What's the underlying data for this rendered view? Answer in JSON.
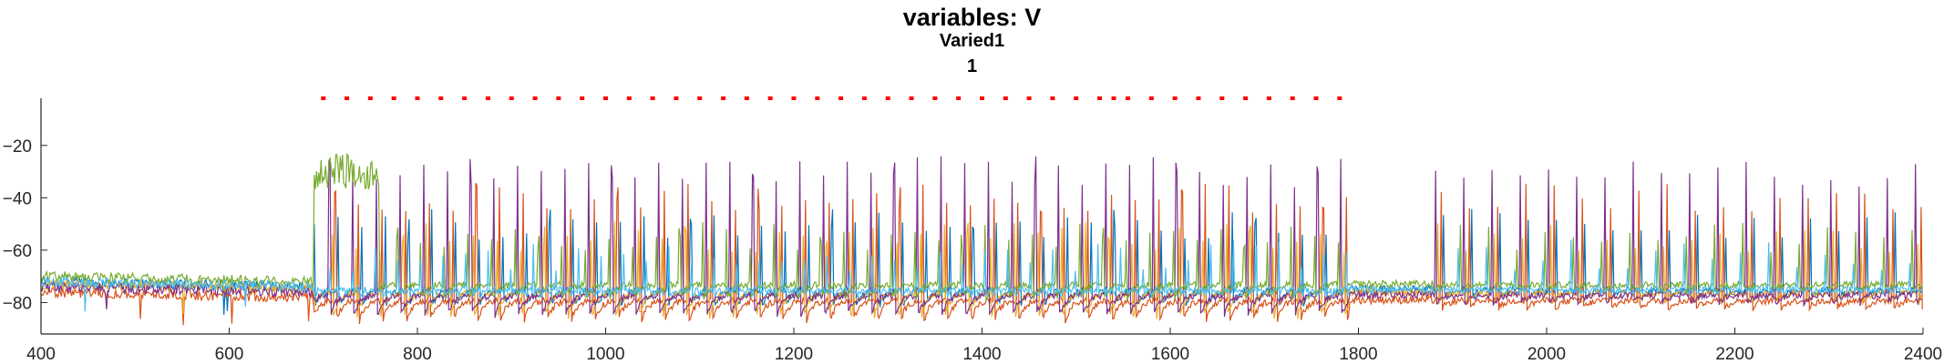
{
  "chart_data": {
    "type": "line",
    "title": "variables: V",
    "subtitle": "Varied1",
    "subtitle2": "1",
    "xlabel": "",
    "ylabel": "",
    "xlim": [
      400,
      2400
    ],
    "ylim": [
      -92,
      -2
    ],
    "xticks": [
      400,
      600,
      800,
      1000,
      1200,
      1400,
      1600,
      1800,
      2000,
      2200,
      2400
    ],
    "yticks": [
      -80,
      -60,
      -40,
      -20
    ],
    "grid": false,
    "legend": "none",
    "spike_markers": {
      "color": "#ff0000",
      "y": -2,
      "x": [
        700,
        725,
        750,
        775,
        800,
        825,
        850,
        875,
        900,
        925,
        950,
        975,
        1000,
        1025,
        1050,
        1075,
        1100,
        1125,
        1150,
        1175,
        1200,
        1225,
        1250,
        1275,
        1300,
        1325,
        1350,
        1375,
        1400,
        1425,
        1450,
        1475,
        1500,
        1525,
        1540,
        1555,
        1580,
        1605,
        1630,
        1655,
        1680,
        1705,
        1730,
        1755,
        1780
      ]
    },
    "series": [
      {
        "color": "#0072bd",
        "baseline": -75,
        "trough": -83,
        "spike_peak": -50,
        "spike_every": 25,
        "active": [
          690,
          1790
        ],
        "late_active": [
          1880,
          2400
        ]
      },
      {
        "color": "#d95319",
        "baseline": -79,
        "trough": -90,
        "spike_peak": -40,
        "spike_every": 25,
        "active": [
          690,
          1790
        ],
        "late_active": [
          1880,
          2400
        ]
      },
      {
        "color": "#edb120",
        "baseline": -76,
        "trough": -89,
        "spike_peak": -55,
        "spike_every": 25,
        "active": [
          690,
          1790
        ],
        "late_active": [
          1880,
          2400
        ]
      },
      {
        "color": "#7e2f8e",
        "baseline": -77,
        "trough": -88,
        "spike_peak": -30,
        "spike_every": 25,
        "active": [
          690,
          1790
        ],
        "late_active": [
          1880,
          2400
        ]
      },
      {
        "color": "#77ac30",
        "baseline": -73,
        "trough": -80,
        "spike_peak": -55,
        "spike_every": 25,
        "active": [
          690,
          1790
        ],
        "late_active": [
          1880,
          2400
        ]
      },
      {
        "color": "#4dbeee",
        "baseline": -75,
        "trough": -78,
        "spike_peak": -62,
        "spike_every": 8,
        "active": [
          690,
          1790
        ],
        "late_active": [
          1880,
          2400
        ]
      }
    ]
  }
}
